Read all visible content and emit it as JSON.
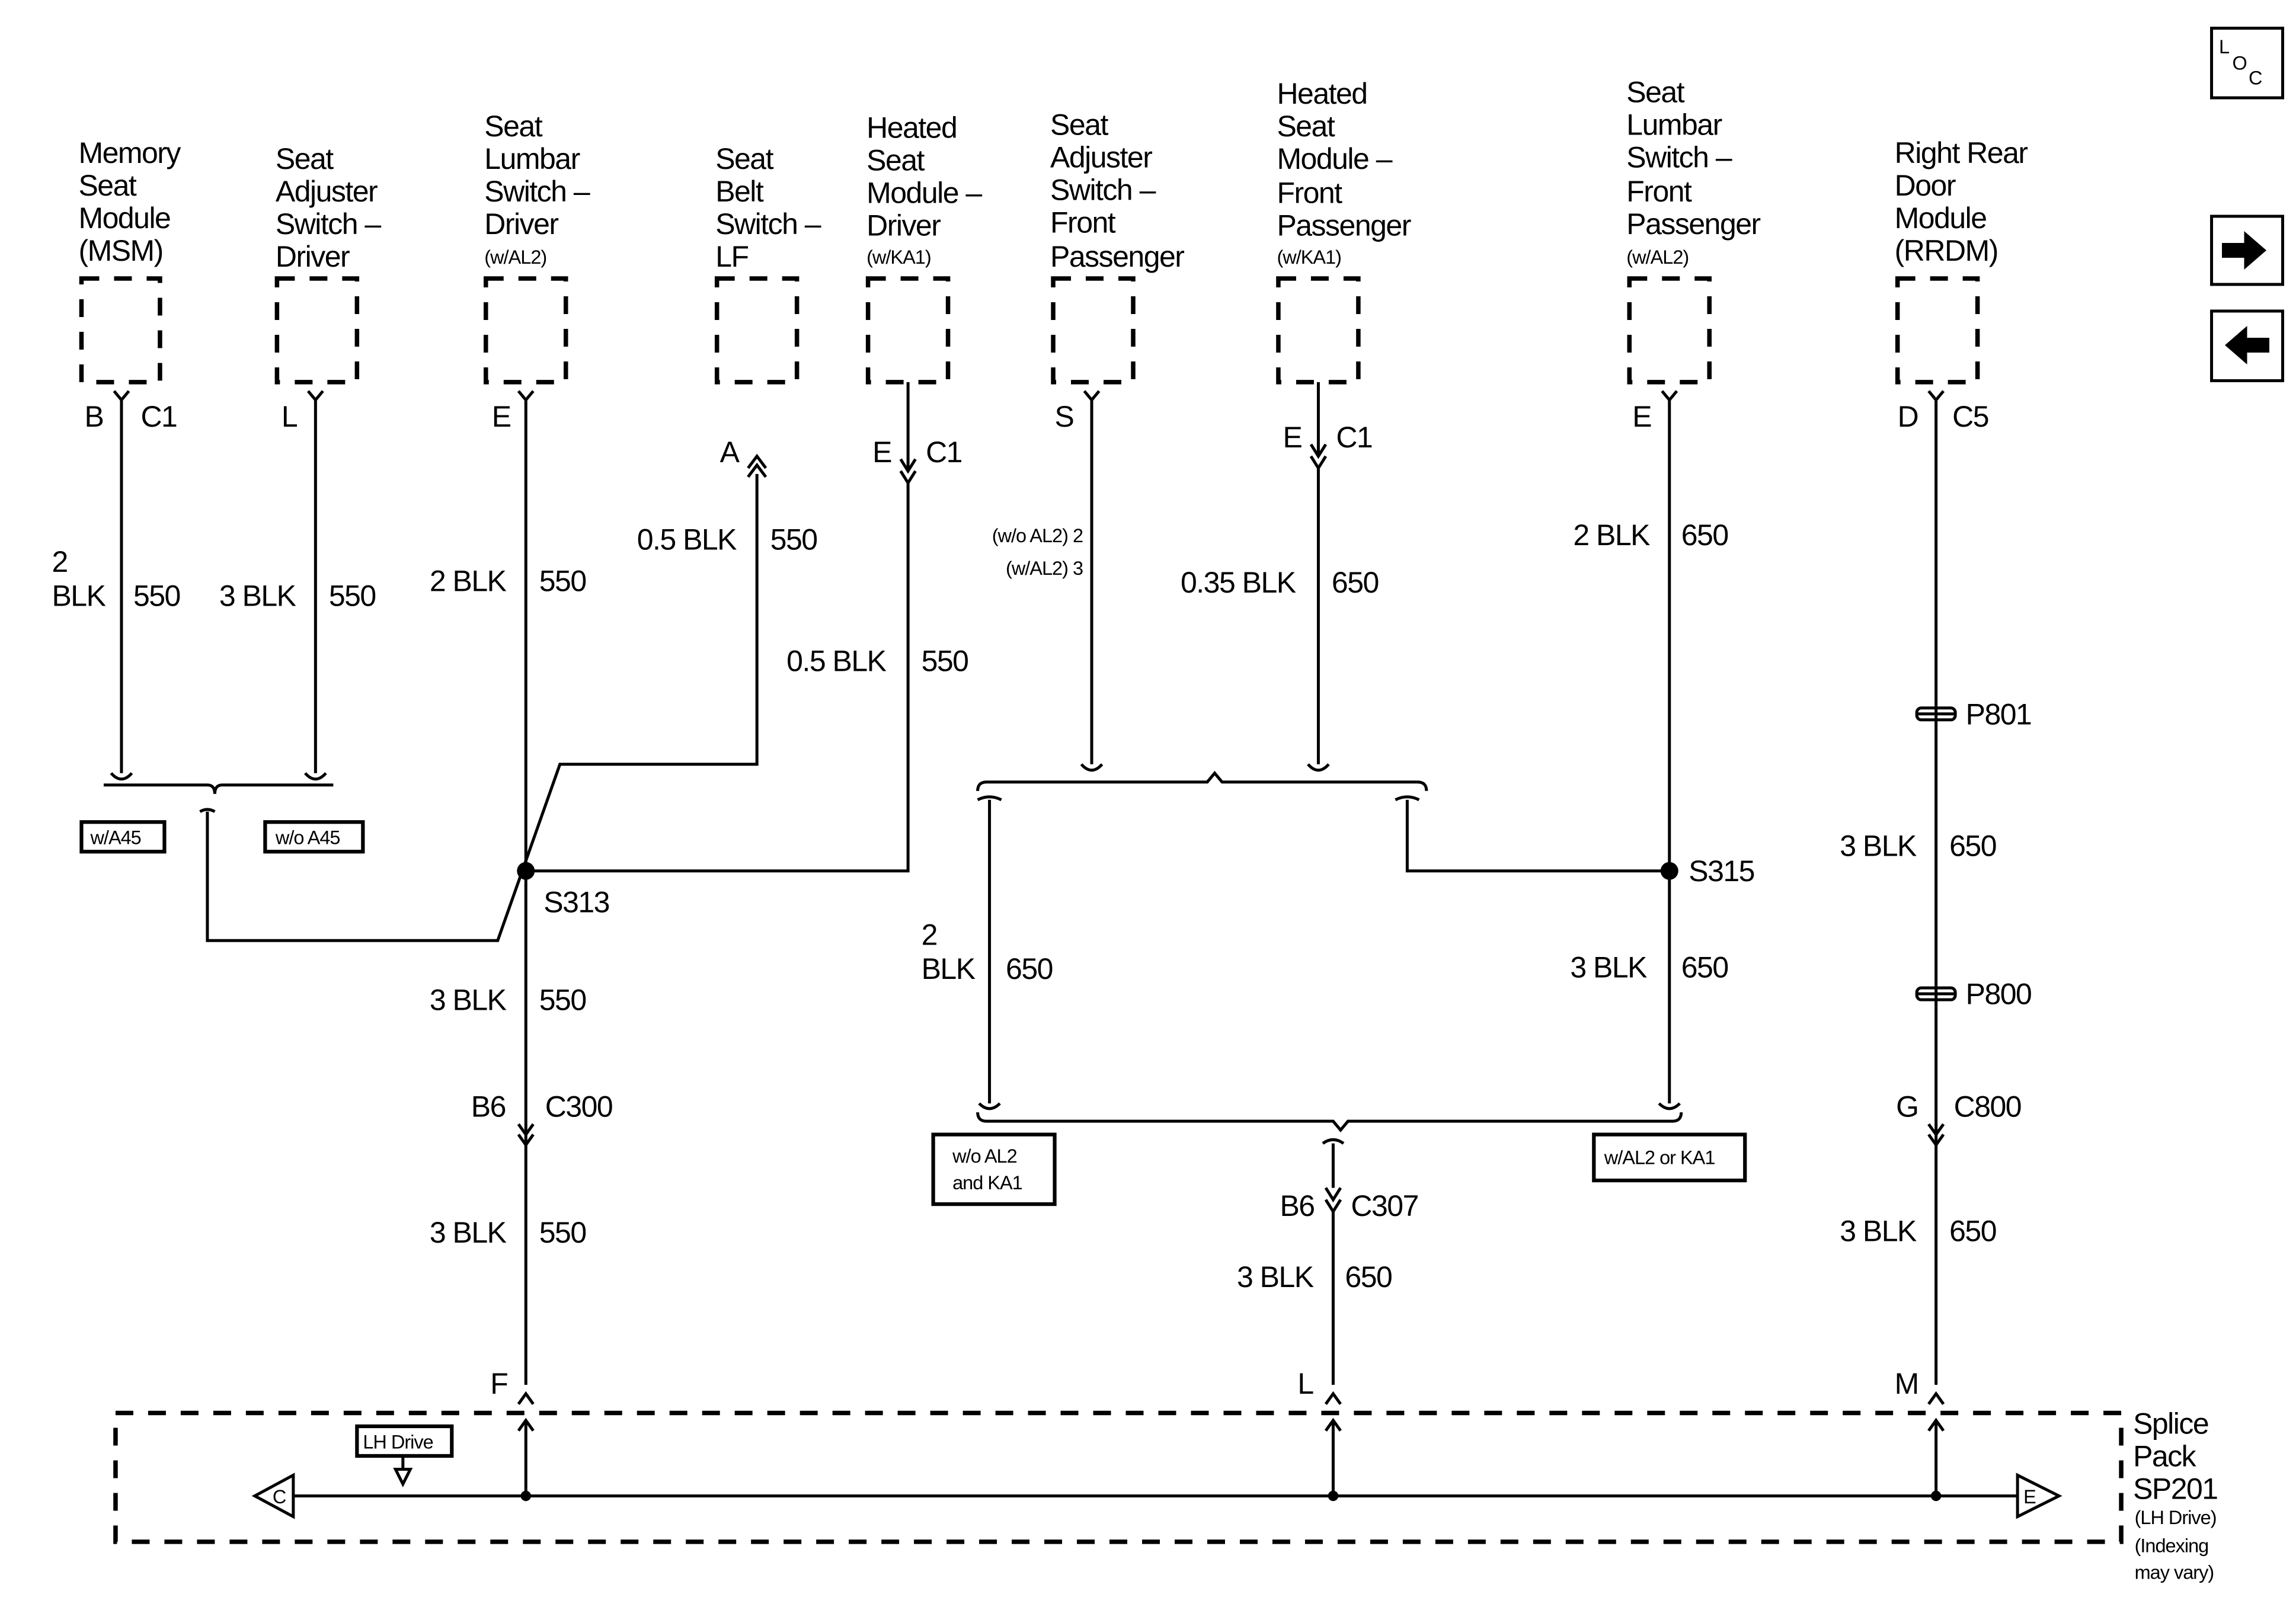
{
  "nav": {
    "loc_icon": "location-icon",
    "next_icon": "arrow-right-icon",
    "prev_icon": "arrow-left-icon",
    "loc_letters": [
      "L",
      "O",
      "C"
    ]
  },
  "components": [
    {
      "name": [
        "Memory",
        "Seat",
        "Module",
        "(MSM)"
      ],
      "option": "",
      "pin": "B",
      "connector": "C1",
      "wire_gauge": [
        "2",
        "BLK"
      ],
      "circuit": "550"
    },
    {
      "name": [
        "Seat",
        "Adjuster",
        "Switch –",
        "Driver"
      ],
      "option": "",
      "pin": "L",
      "connector": "",
      "wire_gauge": [
        "3 BLK"
      ],
      "circuit": "550"
    },
    {
      "name": [
        "Seat",
        "Lumbar",
        "Switch –",
        "Driver"
      ],
      "option": "(w/AL2)",
      "pin": "E",
      "connector": "",
      "wire_gauge": [
        "2 BLK"
      ],
      "circuit": "550"
    },
    {
      "name": [
        "Seat",
        "Belt",
        "Switch –",
        "LF"
      ],
      "option": "",
      "pin": "A",
      "connector": "",
      "wire_gauge": [
        "0.5 BLK"
      ],
      "circuit": "550"
    },
    {
      "name": [
        "Heated",
        "Seat",
        "Module –",
        "Driver"
      ],
      "option": "(w/KA1)",
      "pin": "E",
      "connector": "C1",
      "wire_gauge": [
        "0.5 BLK"
      ],
      "circuit": "550"
    },
    {
      "name": [
        "Seat",
        "Adjuster",
        "Switch –",
        "Front",
        "Passenger"
      ],
      "option": "",
      "pin": "S",
      "connector": "",
      "wire_gauge": [
        "(w/o AL2) 2",
        "(w/AL2) 3"
      ],
      "circuit": ""
    },
    {
      "name": [
        "Heated",
        "Seat",
        "Module –",
        "Front",
        "Passenger"
      ],
      "option": "(w/KA1)",
      "pin": "E",
      "connector": "C1",
      "wire_gauge": [
        "0.35 BLK"
      ],
      "circuit": "650"
    },
    {
      "name": [
        "Seat",
        "Lumbar",
        "Switch –",
        "Front",
        "Passenger"
      ],
      "option": "(w/AL2)",
      "pin": "E",
      "connector": "",
      "wire_gauge": [
        "2 BLK"
      ],
      "circuit": "650"
    },
    {
      "name": [
        "Right Rear",
        "Door",
        "Module",
        "(RRDM)"
      ],
      "option": "",
      "pin": "D",
      "connector": "C5",
      "wire_gauge": [
        "3 BLK"
      ],
      "circuit": "650"
    }
  ],
  "options": {
    "w_a45": "w/A45",
    "wo_a45": "w/o A45",
    "wo_al2_ka1": [
      "w/o AL2",
      "and KA1"
    ],
    "w_al2_ka1": "w/AL2 or KA1",
    "lh_drive": "LH Drive"
  },
  "splices": {
    "s313": "S313",
    "s315": "S315"
  },
  "driver_trunk": {
    "w1": "3 BLK",
    "c1": "550",
    "pin": "B6",
    "connector": "C300",
    "w2": "3 BLK",
    "c2": "550",
    "sp_pin": "F"
  },
  "pass_branch": {
    "w1": [
      "2",
      "BLK"
    ],
    "c1": "650",
    "w2": "3 BLK",
    "c2": "650",
    "pin": "B6",
    "connector": "C307",
    "w3": "3 BLK",
    "c3": "650",
    "sp_pin": "L"
  },
  "rear": {
    "p801": "P801",
    "w1": "3 BLK",
    "c1": "650",
    "p800": "P800",
    "pin": "G",
    "connector": "C800",
    "w2": "3 BLK",
    "c2": "650",
    "sp_pin": "M"
  },
  "splice_pack": {
    "lines": [
      "Splice",
      "Pack",
      "SP201"
    ],
    "notes": [
      "(LH Drive)",
      "(Indexing",
      "may vary)"
    ],
    "left_ref": "C",
    "right_ref": "E"
  }
}
